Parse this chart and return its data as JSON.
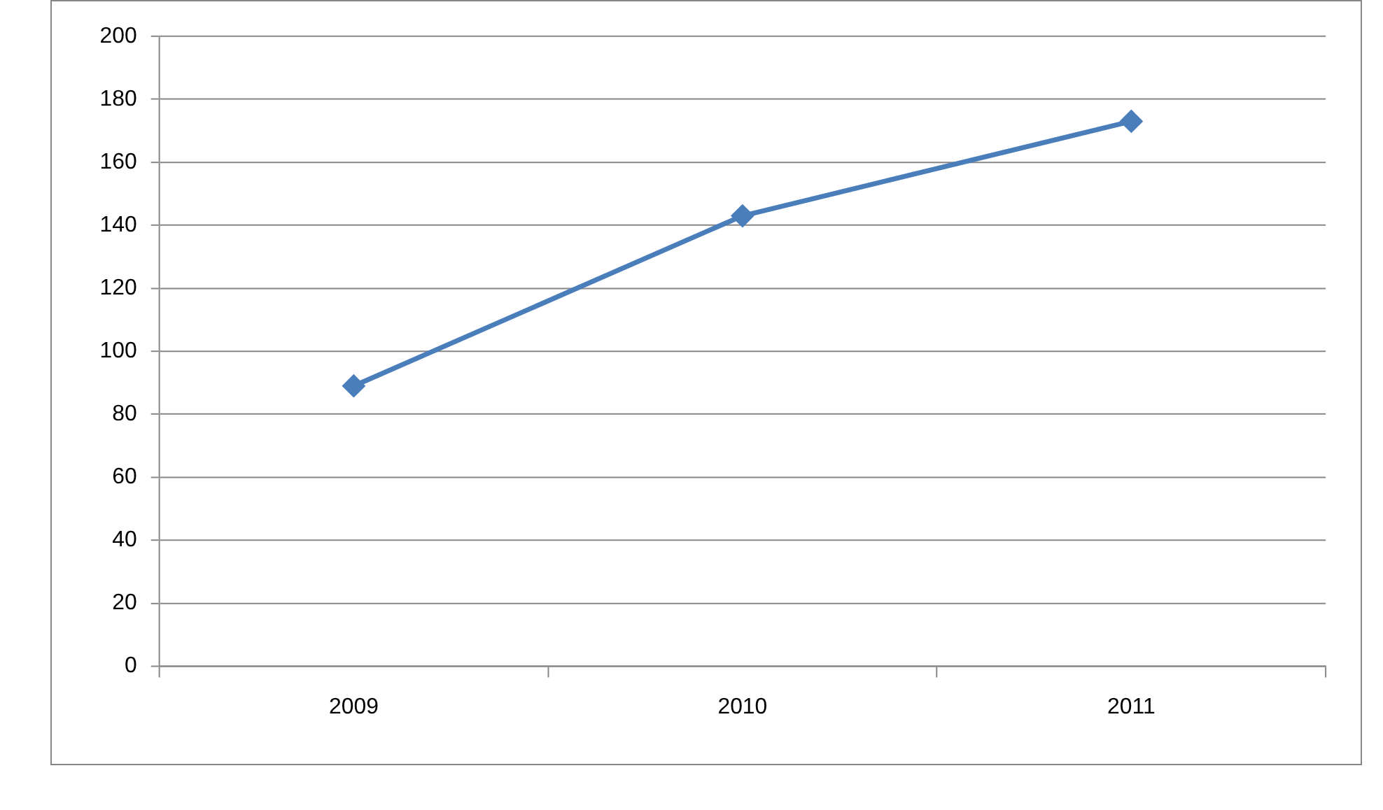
{
  "chart_data": {
    "type": "line",
    "categories": [
      "2009",
      "2010",
      "2011"
    ],
    "series": [
      {
        "color": "#4a7ebb",
        "values": [
          89,
          143,
          173
        ]
      }
    ],
    "ylim": [
      0,
      200
    ],
    "yticks": [
      0,
      20,
      40,
      60,
      80,
      100,
      120,
      140,
      160,
      180,
      200
    ],
    "grid": "y",
    "legend": false,
    "marker": "diamond",
    "line_style": "solid"
  }
}
